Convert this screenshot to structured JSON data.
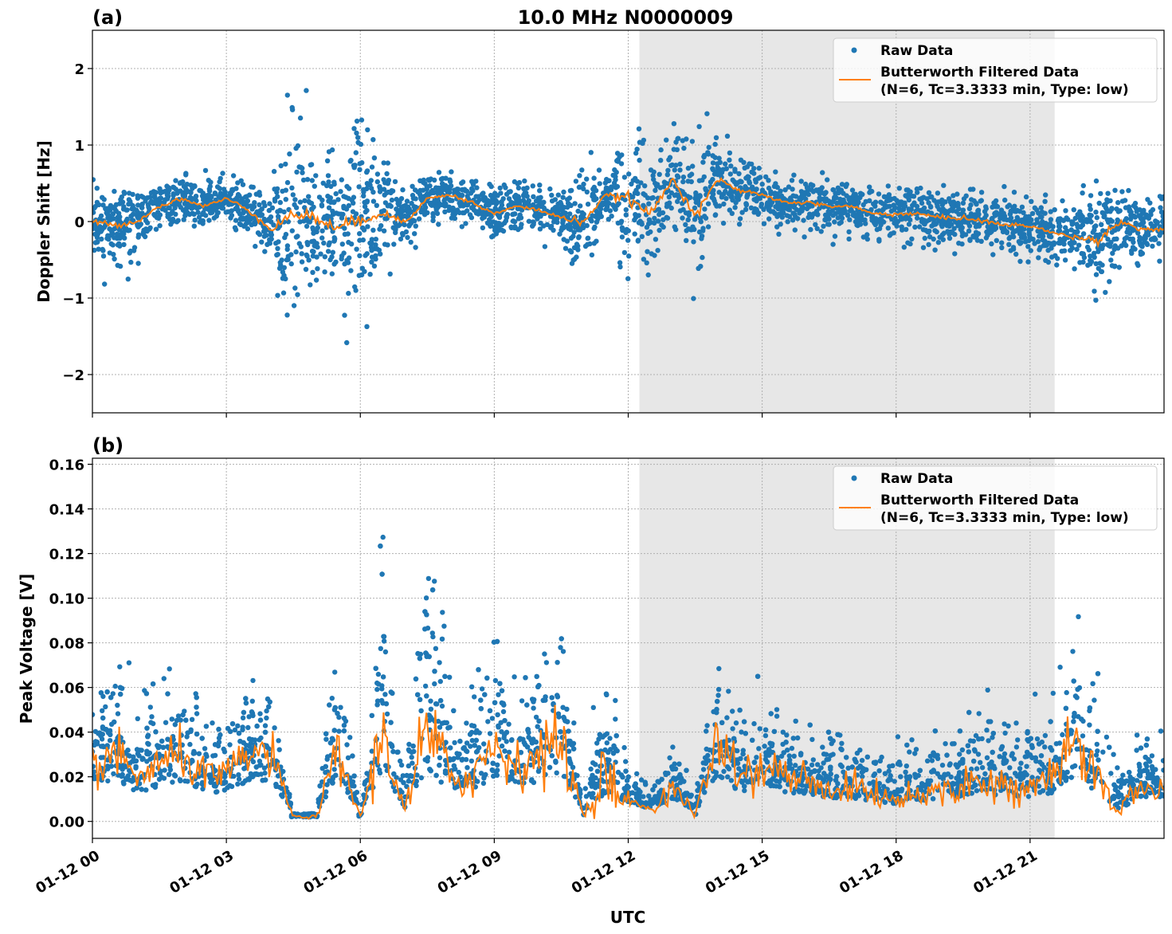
{
  "chart_data": [
    {
      "type": "scatter",
      "panel_label": "(a)",
      "title": "10.0 MHz N0000009",
      "xlabel": "",
      "ylabel": "Doppler Shift [Hz]",
      "xlim_hours": [
        0,
        24
      ],
      "ylim": [
        -2.5,
        2.5
      ],
      "yticks": [
        -2,
        -1,
        0,
        1,
        2
      ],
      "ytick_labels": [
        "−2",
        "−1",
        "0",
        "1",
        "2"
      ],
      "grid": true,
      "legend_placement": "top-right",
      "shaded_interval_hours": [
        12.25,
        21.55
      ],
      "colors": {
        "raw": "#1f77b4",
        "filtered": "#ff7f0e",
        "shade": "#e7e7e7"
      },
      "legend": [
        "Raw Data",
        "Butterworth Filtered Data",
        "(N=6, Tc=3.3333 min, Type: low)"
      ],
      "x_hours": [
        0,
        0.5,
        1,
        1.5,
        2,
        2.5,
        3,
        3.5,
        4,
        4.5,
        5,
        5.5,
        6,
        6.5,
        7,
        7.5,
        8,
        8.5,
        9,
        9.5,
        10,
        10.5,
        11,
        11.5,
        12,
        12.5,
        13,
        13.5,
        14,
        14.5,
        15,
        15.5,
        16,
        16.5,
        17,
        17.5,
        18,
        18.5,
        19,
        19.5,
        20,
        20.5,
        21,
        21.5,
        22,
        22.5,
        23,
        23.5,
        24
      ],
      "series": [
        {
          "name": "Butterworth Filtered Data",
          "values": [
            0.0,
            -0.05,
            0.0,
            0.2,
            0.3,
            0.2,
            0.3,
            0.15,
            -0.1,
            0.1,
            0.05,
            -0.1,
            0.05,
            0.1,
            0.0,
            0.3,
            0.35,
            0.25,
            0.1,
            0.2,
            0.15,
            0.05,
            0.0,
            0.35,
            0.3,
            0.1,
            0.55,
            0.1,
            0.55,
            0.4,
            0.35,
            0.25,
            0.25,
            0.2,
            0.2,
            0.1,
            0.1,
            0.1,
            0.05,
            0.05,
            0.0,
            -0.05,
            -0.05,
            -0.15,
            -0.2,
            -0.25,
            0.0,
            -0.1,
            -0.1
          ]
        },
        {
          "name": "Raw Data",
          "spread": [
            0.2,
            0.25,
            0.2,
            0.15,
            0.15,
            0.15,
            0.15,
            0.2,
            0.25,
            0.6,
            0.6,
            0.3,
            0.7,
            0.3,
            0.25,
            0.15,
            0.15,
            0.15,
            0.15,
            0.15,
            0.15,
            0.15,
            0.4,
            0.1,
            0.5,
            0.3,
            0.3,
            0.5,
            0.2,
            0.15,
            0.15,
            0.15,
            0.15,
            0.15,
            0.15,
            0.15,
            0.18,
            0.18,
            0.18,
            0.18,
            0.18,
            0.18,
            0.18,
            0.18,
            0.2,
            0.3,
            0.3,
            0.2,
            0.2
          ]
        }
      ]
    },
    {
      "type": "scatter",
      "panel_label": "(b)",
      "xlabel": "UTC",
      "ylabel": "Peak Voltage [V]",
      "xlim_hours": [
        0,
        24
      ],
      "ylim": [
        -0.0076,
        0.1627
      ],
      "yticks": [
        0,
        0.02,
        0.04,
        0.06,
        0.08,
        0.1,
        0.12,
        0.14,
        0.16
      ],
      "ytick_labels": [
        "0.00",
        "0.02",
        "0.04",
        "0.06",
        "0.08",
        "0.10",
        "0.12",
        "0.14",
        "0.16"
      ],
      "xtick_labels": [
        "01-12 00",
        "01-12 03",
        "01-12 06",
        "01-12 09",
        "01-12 12",
        "01-12 15",
        "01-12 18",
        "01-12 21"
      ],
      "xticks_hours": [
        0,
        3,
        6,
        9,
        12,
        15,
        18,
        21
      ],
      "grid": true,
      "legend_placement": "top-right",
      "shaded_interval_hours": [
        12.25,
        21.55
      ],
      "colors": {
        "raw": "#1f77b4",
        "filtered": "#ff7f0e",
        "shade": "#e7e7e7"
      },
      "legend": [
        "Raw Data",
        "Butterworth Filtered Data",
        "(N=6, Tc=3.3333 min, Type: low)"
      ],
      "x_hours": [
        0,
        0.5,
        1,
        1.5,
        2,
        2.5,
        3,
        3.5,
        4,
        4.5,
        5,
        5.5,
        6,
        6.5,
        7,
        7.5,
        8,
        8.5,
        9,
        9.5,
        10,
        10.5,
        11,
        11.5,
        12,
        12.5,
        13,
        13.5,
        14,
        14.5,
        15,
        15.5,
        16,
        16.5,
        17,
        17.5,
        18,
        18.5,
        19,
        19.5,
        20,
        20.5,
        21,
        21.5,
        22,
        22.5,
        23,
        23.5,
        24
      ],
      "series": [
        {
          "name": "Butterworth Filtered Data",
          "values": [
            0.025,
            0.03,
            0.02,
            0.025,
            0.03,
            0.02,
            0.02,
            0.03,
            0.03,
            0.002,
            0.002,
            0.03,
            0.002,
            0.04,
            0.005,
            0.04,
            0.02,
            0.02,
            0.035,
            0.025,
            0.03,
            0.035,
            0.003,
            0.02,
            0.01,
            0.005,
            0.015,
            0.003,
            0.035,
            0.02,
            0.025,
            0.02,
            0.018,
            0.015,
            0.015,
            0.012,
            0.01,
            0.012,
            0.015,
            0.015,
            0.02,
            0.015,
            0.015,
            0.018,
            0.035,
            0.02,
            0.005,
            0.015,
            0.015
          ]
        },
        {
          "name": "Raw Data",
          "spread": [
            0.015,
            0.015,
            0.012,
            0.015,
            0.015,
            0.012,
            0.012,
            0.015,
            0.015,
            0.001,
            0.001,
            0.02,
            0.001,
            0.03,
            0.003,
            0.04,
            0.015,
            0.015,
            0.02,
            0.015,
            0.02,
            0.025,
            0.002,
            0.02,
            0.006,
            0.003,
            0.01,
            0.002,
            0.02,
            0.012,
            0.015,
            0.012,
            0.01,
            0.01,
            0.01,
            0.008,
            0.008,
            0.008,
            0.01,
            0.01,
            0.015,
            0.01,
            0.01,
            0.012,
            0.025,
            0.015,
            0.004,
            0.01,
            0.01
          ]
        }
      ]
    }
  ]
}
